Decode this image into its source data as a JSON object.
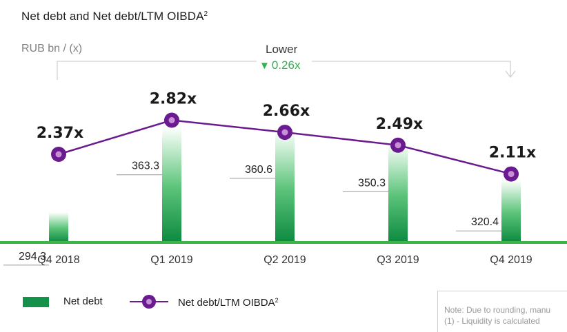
{
  "header": {
    "title": "Net debt and Net debt/LTM OIBDA",
    "title_sup": "2",
    "units": "RUB bn / (x)",
    "lower_label": "Lower",
    "delta": "0.26x",
    "delta_color": "#2cb34a"
  },
  "legend": {
    "bar_label": "Net debt",
    "line_label": "Net debt/LTM OIBDA",
    "line_label_sup": "2"
  },
  "note": {
    "line1": "Note: Due to rounding, manu",
    "line2": "(1)     - Liquidity is calculated"
  },
  "chart_data": {
    "type": "bar",
    "title": "Net debt and Net debt/LTM OIBDA",
    "categories": [
      "Q4 2018",
      "Q1 2019",
      "Q2 2019",
      "Q3 2019",
      "Q4 2019"
    ],
    "series": [
      {
        "name": "Net debt",
        "type": "bar",
        "values": [
          294.3,
          363.3,
          360.6,
          350.3,
          320.4
        ],
        "labels": [
          "294.3",
          "363.3",
          "360.6",
          "350.3",
          "320.4"
        ],
        "color": "#16914a"
      },
      {
        "name": "Net debt/LTM OIBDA",
        "type": "line",
        "values": [
          2.37,
          2.82,
          2.66,
          2.49,
          2.11
        ],
        "labels": [
          "2.37x",
          "2.82x",
          "2.66x",
          "2.49x",
          "2.11x"
        ],
        "color": "#6a1b8f"
      }
    ],
    "baseline_color": "#3cb44a",
    "grid": false,
    "legend_position": "bottom-left"
  }
}
